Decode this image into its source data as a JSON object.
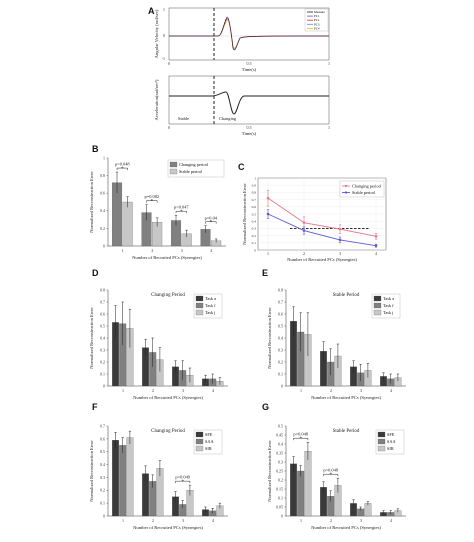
{
  "colors": {
    "dark": "#3a3a3a",
    "mid": "#808080",
    "light": "#c7c7c7",
    "red": "#e8798a",
    "blue": "#5b5bd6"
  },
  "chart_data": [
    {
      "panel": "A",
      "type": "line",
      "ylabel": "Angular Velocity (rad/sec)",
      "xlabel": "Time(s)",
      "legend": [
        "Measure",
        "PC1",
        "PCs",
        "PC3",
        "PC4"
      ],
      "annotations": []
    },
    {
      "panel": "A2",
      "type": "line",
      "ylabel": "Acceleration(rad/sec²)",
      "xlabel": "Time(s)",
      "annotations": [
        "Stable",
        "Changing"
      ]
    },
    {
      "panel": "B",
      "type": "bar",
      "xlabel": "Number of Recruited PCs (Synergies)",
      "ylabel": "Normalized Reconstruction Error",
      "categories": [
        "1",
        "2",
        "3",
        "4"
      ],
      "ylim": [
        0,
        1
      ],
      "yticks": [
        "0",
        "0.2",
        "0.4",
        "0.6",
        "0.8",
        "1"
      ],
      "series": [
        {
          "name": "Changing period",
          "color": "#808080",
          "values": [
            0.72,
            0.38,
            0.29,
            0.19
          ],
          "err": [
            0.12,
            0.09,
            0.06,
            0.04
          ]
        },
        {
          "name": "Stable period",
          "color": "#c7c7c7",
          "values": [
            0.5,
            0.27,
            0.14,
            0.06
          ],
          "err": [
            0.06,
            0.05,
            0.04,
            0.02
          ]
        }
      ],
      "pvalues": [
        "p=0.048",
        "p=0.082",
        "p=0.047",
        "p=0.04"
      ]
    },
    {
      "panel": "C",
      "type": "line",
      "xlabel": "Number of Recruited PCs (Synergies)",
      "ylabel": "Normalized Reconstruction Error",
      "x": [
        "1",
        "2",
        "3",
        "4"
      ],
      "ylim": [
        0,
        1
      ],
      "yticks": [
        "0",
        "0.1",
        "0.2",
        "0.3",
        "0.4",
        "0.5",
        "0.6",
        "0.7",
        "0.8",
        "0.9",
        "1"
      ],
      "series": [
        {
          "name": "Changing period",
          "color": "#e8798a",
          "values": [
            0.72,
            0.38,
            0.29,
            0.19
          ],
          "err": [
            0.11,
            0.08,
            0.06,
            0.04
          ]
        },
        {
          "name": "Stable period",
          "color": "#5b5bd6",
          "values": [
            0.5,
            0.27,
            0.14,
            0.06
          ],
          "err": [
            0.06,
            0.05,
            0.04,
            0.02
          ]
        }
      ],
      "threshold": 0.3
    },
    {
      "panel": "D",
      "type": "bar",
      "title": "Changing Period",
      "xlabel": "Number of Recruited PCs (Synergies)",
      "ylabel": "Normalized Reconstruction Error",
      "categories": [
        "1",
        "2",
        "3",
        "4"
      ],
      "ylim": [
        0,
        0.8
      ],
      "yticks": [
        "0",
        "0.1",
        "0.2",
        "0.3",
        "0.4",
        "0.5",
        "0.6",
        "0.7",
        "0.8"
      ],
      "series": [
        {
          "name": "Task a",
          "color": "#3a3a3a",
          "values": [
            0.53,
            0.32,
            0.16,
            0.06
          ],
          "err": [
            0.14,
            0.07,
            0.05,
            0.03
          ]
        },
        {
          "name": "Task f",
          "color": "#808080",
          "values": [
            0.52,
            0.28,
            0.13,
            0.06
          ],
          "err": [
            0.18,
            0.12,
            0.08,
            0.04
          ]
        },
        {
          "name": "Task j",
          "color": "#c7c7c7",
          "values": [
            0.48,
            0.22,
            0.09,
            0.04
          ],
          "err": [
            0.16,
            0.1,
            0.06,
            0.03
          ]
        }
      ]
    },
    {
      "panel": "E",
      "type": "bar",
      "title": "Stable Period",
      "xlabel": "Number of Recruited PCs (Synergies)",
      "ylabel": "Normalized Reconstruction Error",
      "categories": [
        "1",
        "2",
        "3",
        "4"
      ],
      "ylim": [
        0,
        0.8
      ],
      "yticks": [
        "0",
        "0.1",
        "0.2",
        "0.3",
        "0.4",
        "0.5",
        "0.6",
        "0.7",
        "0.8"
      ],
      "series": [
        {
          "name": "Task a",
          "color": "#3a3a3a",
          "values": [
            0.54,
            0.29,
            0.16,
            0.08
          ],
          "err": [
            0.12,
            0.08,
            0.05,
            0.03
          ]
        },
        {
          "name": "Task f",
          "color": "#808080",
          "values": [
            0.45,
            0.2,
            0.11,
            0.06
          ],
          "err": [
            0.16,
            0.11,
            0.07,
            0.04
          ]
        },
        {
          "name": "Task j",
          "color": "#c7c7c7",
          "values": [
            0.43,
            0.25,
            0.13,
            0.07
          ],
          "err": [
            0.18,
            0.1,
            0.06,
            0.03
          ]
        }
      ]
    },
    {
      "panel": "F",
      "type": "bar",
      "title": "Changing Period",
      "xlabel": "Number of Recruited PCs (Synergies)",
      "ylabel": "Normalized Reconstruction Error",
      "categories": [
        "1",
        "2",
        "3",
        "4"
      ],
      "ylim": [
        0,
        0.7
      ],
      "yticks": [
        "0",
        "0.1",
        "0.2",
        "0.3",
        "0.4",
        "0.5",
        "0.6",
        "0.7"
      ],
      "series": [
        {
          "name": "SFE",
          "color": "#3a3a3a",
          "values": [
            0.59,
            0.33,
            0.15,
            0.05
          ],
          "err": [
            0.06,
            0.06,
            0.04,
            0.02
          ]
        },
        {
          "name": "SAA",
          "color": "#808080",
          "values": [
            0.55,
            0.27,
            0.09,
            0.04
          ],
          "err": [
            0.06,
            0.05,
            0.03,
            0.02
          ]
        },
        {
          "name": "SIR",
          "color": "#c7c7c7",
          "values": [
            0.61,
            0.37,
            0.2,
            0.08
          ],
          "err": [
            0.05,
            0.06,
            0.04,
            0.02
          ]
        }
      ],
      "pvalues": [
        "p=0.049"
      ]
    },
    {
      "panel": "G",
      "type": "bar",
      "title": "Stable Period",
      "xlabel": "Number of Recruited PCs (Synergies)",
      "ylabel": "Normalized Reconstruction Error",
      "categories": [
        "1",
        "2",
        "3",
        "4"
      ],
      "ylim": [
        0,
        0.5
      ],
      "yticks": [
        "0",
        "0.05",
        "0.1",
        "0.15",
        "0.2",
        "0.25",
        "0.3",
        "0.35",
        "0.4",
        "0.45",
        "0.5"
      ],
      "series": [
        {
          "name": "SFE",
          "color": "#3a3a3a",
          "values": [
            0.29,
            0.16,
            0.07,
            0.02
          ],
          "err": [
            0.04,
            0.03,
            0.02,
            0.01
          ]
        },
        {
          "name": "SAA",
          "color": "#808080",
          "values": [
            0.25,
            0.11,
            0.04,
            0.02
          ],
          "err": [
            0.03,
            0.03,
            0.01,
            0.01
          ]
        },
        {
          "name": "SIR",
          "color": "#c7c7c7",
          "values": [
            0.36,
            0.17,
            0.07,
            0.03
          ],
          "err": [
            0.05,
            0.04,
            0.01,
            0.01
          ]
        }
      ],
      "pvalues": [
        "p=0.048",
        "p=0.048"
      ]
    }
  ]
}
